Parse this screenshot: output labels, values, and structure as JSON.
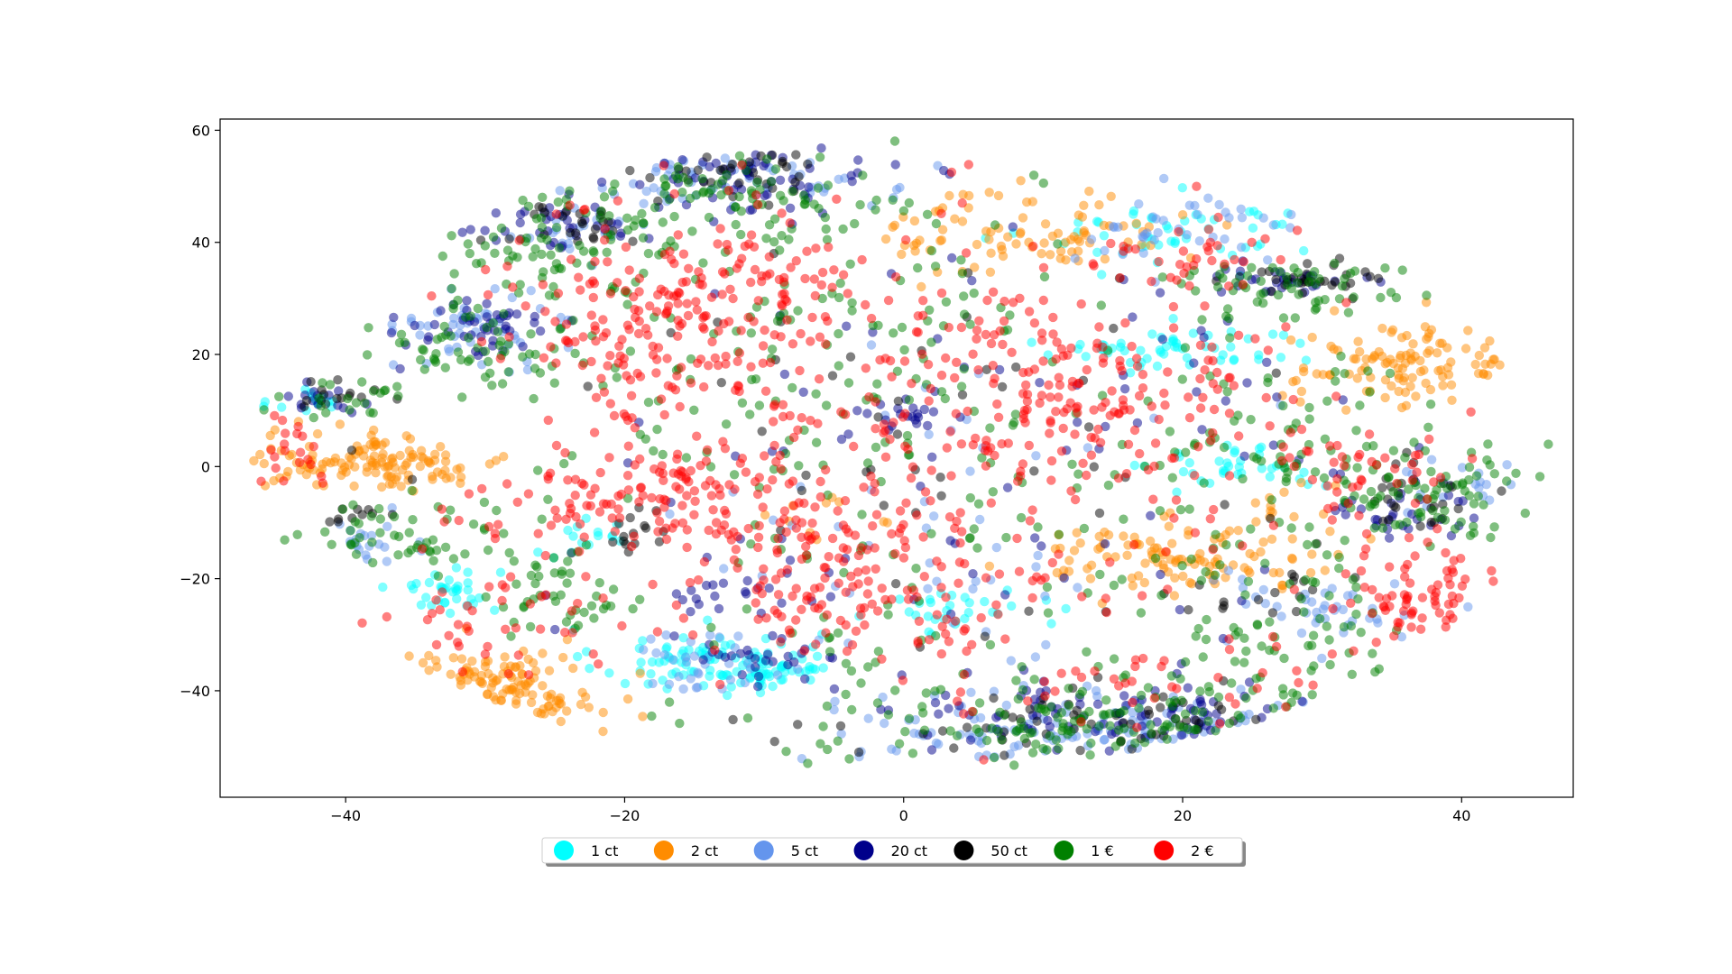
{
  "chart_data": {
    "type": "scatter",
    "title": "",
    "xlabel": "",
    "ylabel": "",
    "xlim": [
      -49,
      48
    ],
    "ylim": [
      -59,
      62
    ],
    "xticks": [
      -40,
      -20,
      0,
      20,
      40
    ],
    "yticks": [
      -40,
      -20,
      0,
      20,
      40,
      60
    ],
    "xtick_labels": [
      "−40",
      "−20",
      "0",
      "20",
      "40"
    ],
    "ytick_labels": [
      "−40",
      "−20",
      "0",
      "20",
      "40",
      "60"
    ],
    "grid": false,
    "marker_alpha": 0.5,
    "legend": {
      "placement": "bottom-center",
      "columns": 7,
      "shadow": true
    },
    "series": [
      {
        "name": "1 ct",
        "color": "#00FFFF",
        "clusters": [
          [
            -14,
            -35,
            4,
            3,
            90
          ],
          [
            -33,
            -22,
            2,
            2,
            35
          ],
          [
            20,
            42,
            5,
            3,
            50
          ],
          [
            20,
            21,
            5,
            2,
            55
          ],
          [
            24,
            0,
            3,
            2,
            35
          ],
          [
            4,
            -26,
            3,
            2,
            30
          ],
          [
            -42,
            12,
            1.5,
            1.5,
            15
          ],
          [
            -9,
            -36,
            2,
            2,
            25
          ],
          [
            -23,
            -13,
            2,
            2,
            15
          ]
        ]
      },
      {
        "name": "2 ct",
        "color": "#FF8C00",
        "clusters": [
          [
            -38,
            1,
            5,
            2.5,
            130
          ],
          [
            -29,
            -41,
            3.5,
            4,
            110
          ],
          [
            9,
            42,
            5,
            4,
            90
          ],
          [
            20,
            -16,
            6,
            3,
            110
          ],
          [
            36,
            18,
            4,
            4,
            110
          ],
          [
            -7,
            -9,
            2,
            1.5,
            10
          ],
          [
            27,
            -7,
            2,
            2,
            12
          ]
        ]
      },
      {
        "name": "5 ct",
        "color": "#6495ED",
        "clusters": [
          [
            -13,
            51,
            6,
            3,
            60
          ],
          [
            -30,
            25,
            3,
            3,
            50
          ],
          [
            15,
            -47,
            9,
            3,
            110
          ],
          [
            30,
            -25,
            4,
            3,
            40
          ],
          [
            20,
            42,
            4,
            3,
            40
          ],
          [
            -38,
            -14,
            2,
            2,
            20
          ],
          [
            -24,
            42,
            3,
            2,
            20
          ],
          [
            40,
            -4,
            2,
            3,
            20
          ],
          [
            -15,
            -35,
            3,
            3,
            30
          ],
          [
            3,
            -18,
            10,
            20,
            60
          ]
        ]
      },
      {
        "name": "20 ct",
        "color": "#00008B",
        "clusters": [
          [
            -12,
            51,
            5,
            3,
            60
          ],
          [
            -30,
            25,
            2.5,
            2.5,
            45
          ],
          [
            -25,
            43,
            4,
            2,
            35
          ],
          [
            14,
            -44,
            9,
            3,
            90
          ],
          [
            28,
            33,
            3,
            2,
            30
          ],
          [
            35,
            -8,
            3,
            3,
            30
          ],
          [
            -42,
            12,
            1.5,
            1.5,
            15
          ],
          [
            0,
            9,
            2,
            2,
            20
          ],
          [
            -11,
            -24,
            3,
            2,
            20
          ],
          [
            -10,
            -35,
            3,
            2,
            25
          ],
          [
            5,
            0,
            18,
            25,
            90
          ]
        ]
      },
      {
        "name": "50 ct",
        "color": "#000000",
        "clusters": [
          [
            -12,
            52,
            4,
            2,
            30
          ],
          [
            -24,
            43,
            3,
            2,
            25
          ],
          [
            15,
            -46,
            8,
            3,
            55
          ],
          [
            29,
            33,
            2.5,
            2,
            30
          ],
          [
            37,
            -5,
            2.5,
            3,
            25
          ],
          [
            -41,
            13,
            2,
            1.5,
            15
          ],
          [
            -40,
            -9,
            1.5,
            1,
            10
          ],
          [
            -20,
            -13,
            2,
            2,
            15
          ],
          [
            28,
            -23,
            3,
            2,
            15
          ],
          [
            5,
            0,
            18,
            25,
            60
          ]
        ]
      },
      {
        "name": "1 €",
        "color": "#008000",
        "clusters": [
          [
            -12,
            47,
            6,
            4,
            100
          ],
          [
            -27,
            38,
            4,
            4,
            60
          ],
          [
            -30,
            22,
            4,
            4,
            60
          ],
          [
            15,
            -45,
            10,
            5,
            150
          ],
          [
            27,
            32,
            4,
            3,
            60
          ],
          [
            37,
            -4,
            4,
            4,
            70
          ],
          [
            -35,
            -12,
            4,
            3,
            50
          ],
          [
            -25,
            -22,
            3,
            5,
            50
          ],
          [
            -8,
            20,
            9,
            14,
            130
          ],
          [
            10,
            -12,
            14,
            17,
            150
          ],
          [
            30,
            5,
            5,
            8,
            60
          ],
          [
            28,
            -30,
            5,
            4,
            40
          ],
          [
            -40,
            12,
            2,
            2,
            20
          ]
        ]
      },
      {
        "name": "2 €",
        "color": "#FF0000",
        "clusters": [
          [
            -17,
            23,
            6,
            9,
            150
          ],
          [
            12,
            15,
            7,
            8,
            150
          ],
          [
            -17,
            -5,
            7,
            4,
            130
          ],
          [
            -4,
            -20,
            6,
            7,
            140
          ],
          [
            37,
            -23,
            3,
            4,
            70
          ],
          [
            -12,
            32,
            8,
            10,
            100
          ],
          [
            5,
            2,
            14,
            20,
            200
          ],
          [
            -30,
            -30,
            4,
            5,
            40
          ],
          [
            20,
            38,
            4,
            3,
            30
          ],
          [
            33,
            0,
            3,
            4,
            40
          ],
          [
            -44,
            2,
            1.5,
            4,
            20
          ],
          [
            16,
            -37,
            8,
            4,
            40
          ]
        ]
      }
    ]
  }
}
